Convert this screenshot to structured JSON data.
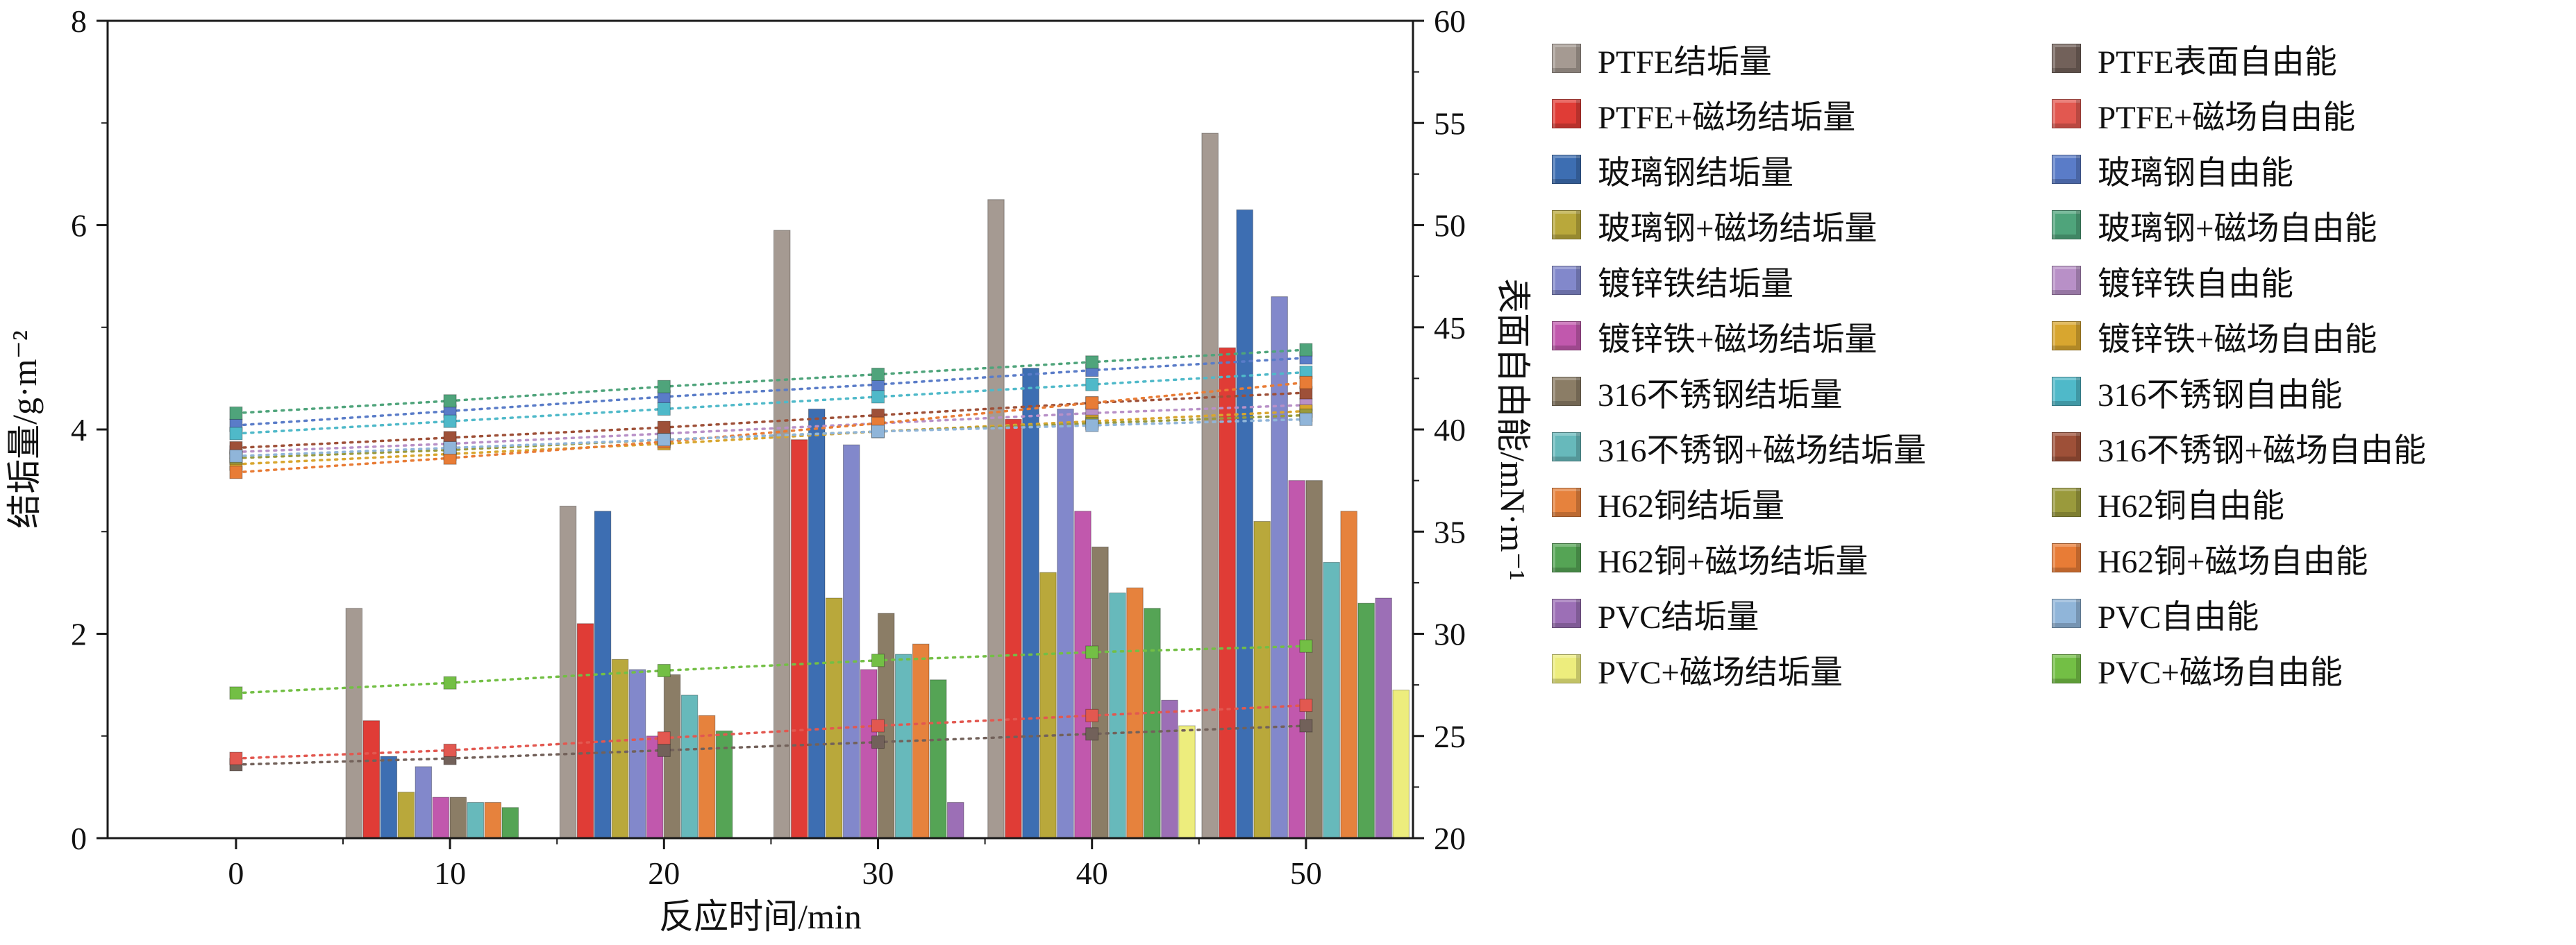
{
  "chart_data": {
    "type": "bar",
    "title": "",
    "xlabel": "反应时间/min",
    "categories": [
      0,
      10,
      20,
      30,
      40,
      50
    ],
    "x_ticks": [
      "0",
      "10",
      "20",
      "30",
      "40",
      "50"
    ],
    "grid": false,
    "legend_position": "right",
    "left_axis": {
      "label": "结垢量/g·m⁻²",
      "min": 0,
      "max": 8,
      "ticks": [
        0,
        2,
        4,
        6,
        8
      ],
      "minor_step": 1
    },
    "right_axis": {
      "label": "表面自由能/mN·m⁻¹",
      "min": 20,
      "max": 60,
      "ticks": [
        20,
        25,
        30,
        35,
        40,
        45,
        50,
        55,
        60
      ],
      "minor_step": 2.5
    },
    "bar_series": [
      {
        "name": "PTFE结垢量",
        "color": "#a59a92",
        "values": [
          0,
          2.25,
          3.25,
          5.95,
          6.25,
          6.9
        ]
      },
      {
        "name": "PTFE+磁场结垢量",
        "color": "#e03c36",
        "values": [
          0,
          1.15,
          2.1,
          3.9,
          4.1,
          4.8
        ]
      },
      {
        "name": "玻璃钢结垢量",
        "color": "#3d6eb2",
        "values": [
          0,
          0.8,
          3.2,
          4.2,
          4.6,
          6.15
        ]
      },
      {
        "name": "玻璃钢+磁场结垢量",
        "color": "#b9a83b",
        "values": [
          0,
          0.45,
          1.75,
          2.35,
          2.6,
          3.1
        ]
      },
      {
        "name": "镀锌铁结垢量",
        "color": "#8288cb",
        "values": [
          0,
          0.7,
          1.65,
          3.85,
          4.2,
          5.3
        ]
      },
      {
        "name": "镀锌铁+磁场结垢量",
        "color": "#c158ad",
        "values": [
          0,
          0.4,
          1.0,
          1.65,
          3.2,
          3.5
        ]
      },
      {
        "name": "316不锈钢结垢量",
        "color": "#8b7d66",
        "values": [
          0,
          0.4,
          1.6,
          2.2,
          2.85,
          3.5
        ]
      },
      {
        "name": "316不锈钢+磁场结垢量",
        "color": "#67b9bb",
        "values": [
          0,
          0.35,
          1.4,
          1.8,
          2.4,
          2.7
        ]
      },
      {
        "name": "H62铜结垢量",
        "color": "#e6823d",
        "values": [
          0,
          0.35,
          1.2,
          1.9,
          2.45,
          3.2
        ]
      },
      {
        "name": "H62铜+磁场结垢量",
        "color": "#55a455",
        "values": [
          0,
          0.3,
          1.05,
          1.55,
          2.25,
          2.3
        ]
      },
      {
        "name": "PVC结垢量",
        "color": "#9c6fb6",
        "values": [
          0,
          0,
          0,
          0.35,
          1.35,
          2.35
        ]
      },
      {
        "name": "PVC+磁场结垢量",
        "color": "#eded7d",
        "values": [
          0,
          0,
          0,
          0,
          1.1,
          1.45
        ]
      }
    ],
    "line_series": [
      {
        "name": "PTFE表面自由能",
        "color": "#72615a",
        "values": [
          23.6,
          23.9,
          24.3,
          24.7,
          25.1,
          25.5
        ]
      },
      {
        "name": "PTFE+磁场自由能",
        "color": "#e25850",
        "values": [
          23.9,
          24.3,
          24.9,
          25.5,
          26.0,
          26.5
        ]
      },
      {
        "name": "玻璃钢自由能",
        "color": "#5a7cc8",
        "values": [
          40.2,
          40.9,
          41.6,
          42.2,
          42.9,
          43.5
        ]
      },
      {
        "name": "玻璃钢+磁场自由能",
        "color": "#4fa47b",
        "values": [
          40.8,
          41.4,
          42.1,
          42.7,
          43.3,
          43.9
        ]
      },
      {
        "name": "镀锌铁自由能",
        "color": "#b890c7",
        "values": [
          38.9,
          39.3,
          39.8,
          40.3,
          40.8,
          41.2
        ]
      },
      {
        "name": "镀锌铁+磁场自由能",
        "color": "#d8a62f",
        "values": [
          38.3,
          38.8,
          39.3,
          39.9,
          40.4,
          40.9
        ]
      },
      {
        "name": "316不锈钢自由能",
        "color": "#4fb9c9",
        "values": [
          39.8,
          40.4,
          41.0,
          41.6,
          42.2,
          42.8
        ]
      },
      {
        "name": "316不锈钢+磁场自由能",
        "color": "#9e5038",
        "values": [
          39.1,
          39.6,
          40.1,
          40.7,
          41.3,
          41.8
        ]
      },
      {
        "name": "H62铜自由能",
        "color": "#9a9a3c",
        "values": [
          38.6,
          39.0,
          39.5,
          39.9,
          40.3,
          40.7
        ]
      },
      {
        "name": "H62铜+磁场自由能",
        "color": "#e87c36",
        "values": [
          37.9,
          38.6,
          39.4,
          40.3,
          41.3,
          42.3
        ]
      },
      {
        "name": "PVC自由能",
        "color": "#90b5d9",
        "values": [
          38.7,
          39.1,
          39.5,
          39.9,
          40.2,
          40.5
        ]
      },
      {
        "name": "PVC+磁场自由能",
        "color": "#73bf45",
        "values": [
          27.1,
          27.6,
          28.2,
          28.7,
          29.1,
          29.4
        ]
      }
    ]
  }
}
